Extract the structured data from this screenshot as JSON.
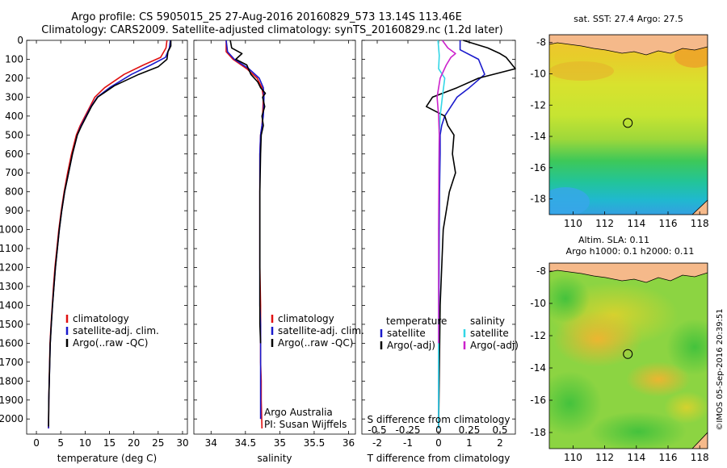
{
  "title_line1": "Argo profile: CS 5905015_25 27-Aug-2016 20160829_573 13.14S 113.46E",
  "title_line2": "Climatology: CARS2009. Satellite-adjusted climatology: synTS_20160829.nc (1.2d later)",
  "credit": "©IMOS 05-Sep-2016 20:39:51",
  "colors": {
    "climatology": "#e01010",
    "satellite": "#1a1acc",
    "argo": "#000000",
    "sal_satellite": "#33d6e6",
    "sal_argo": "#cc22cc",
    "land": "#f5b98a"
  },
  "chart_data": [
    {
      "type": "line",
      "xlabel": "temperature (deg C)",
      "ylabel": "",
      "xlim": [
        -2,
        31
      ],
      "ylim": [
        2080,
        0
      ],
      "xticks": [
        "0",
        "5",
        "10",
        "15",
        "20",
        "25",
        "30"
      ],
      "yticks": [
        "0",
        "100",
        "200",
        "300",
        "400",
        "500",
        "600",
        "700",
        "800",
        "900",
        "1000",
        "1100",
        "1200",
        "1300",
        "1400",
        "1500",
        "1600",
        "1700",
        "1800",
        "1900",
        "2000"
      ],
      "legend": [
        "climatology",
        "satellite-adj. clim.",
        "Argo(..raw -QC)"
      ],
      "series": [
        {
          "name": "climatology",
          "x": [
            26.8,
            26.6,
            25.5,
            22,
            18,
            14,
            12,
            11,
            10,
            9,
            8.2,
            7.2,
            6.4,
            5.7,
            5.1,
            4.6,
            4.2,
            3.8,
            3.5,
            3.25,
            3,
            2.8,
            2.62,
            2.55,
            2.5
          ],
          "y": [
            0,
            40,
            90,
            130,
            180,
            250,
            300,
            350,
            400,
            450,
            500,
            600,
            700,
            800,
            900,
            1000,
            1100,
            1200,
            1300,
            1400,
            1500,
            1600,
            1800,
            1900,
            2050
          ]
        },
        {
          "name": "satellite-adj. clim.",
          "x": [
            27.5,
            27.3,
            26.5,
            23.5,
            19.5,
            15,
            12.5,
            11.2,
            10.2,
            9.2,
            8.4,
            7.4,
            6.6,
            5.8,
            5.2,
            4.7,
            4.3,
            3.9,
            3.6,
            3.3,
            3.05,
            2.85,
            2.65,
            2.55,
            2.5
          ],
          "y": [
            0,
            40,
            90,
            130,
            180,
            250,
            300,
            350,
            400,
            450,
            500,
            600,
            700,
            800,
            900,
            1000,
            1100,
            1200,
            1300,
            1400,
            1500,
            1600,
            1800,
            1900,
            2050
          ]
        },
        {
          "name": "Argo(..raw -QC)",
          "x": [
            27.6,
            27.6,
            27,
            26.8,
            25,
            21,
            16,
            12.6,
            11.3,
            10.3,
            9.3,
            8.4,
            7.4,
            6.6,
            5.8,
            5.2,
            4.7,
            4.3,
            3.9,
            3.6,
            3.3,
            3.05,
            2.85,
            2.65,
            2.55,
            2.5
          ],
          "y": [
            0,
            30,
            60,
            100,
            140,
            180,
            240,
            300,
            350,
            400,
            450,
            500,
            600,
            700,
            800,
            900,
            1000,
            1100,
            1200,
            1300,
            1400,
            1500,
            1600,
            1800,
            1900,
            2040
          ]
        }
      ]
    },
    {
      "type": "line",
      "xlabel": "salinity",
      "ylabel": "",
      "xlim": [
        33.75,
        36.1
      ],
      "ylim": [
        2080,
        0
      ],
      "xticks": [
        "34",
        "34.5",
        "35",
        "35.5",
        "36"
      ],
      "legend": [
        "climatology",
        "satellite-adj. clim.",
        "Argo(..raw -QC)"
      ],
      "annotations": [
        "Argo Australia",
        "PI: Susan Wijffels"
      ],
      "series": [
        {
          "name": "climatology",
          "x": [
            34.22,
            34.22,
            34.32,
            34.52,
            34.67,
            34.74,
            34.76,
            34.75,
            34.74,
            34.72,
            34.71,
            34.71,
            34.71,
            34.71,
            34.72,
            34.72,
            34.72,
            34.72,
            34.73,
            34.73,
            34.74
          ],
          "y": [
            0,
            60,
            100,
            150,
            200,
            250,
            300,
            400,
            450,
            500,
            600,
            800,
            1000,
            1200,
            1400,
            1500,
            1600,
            1700,
            1800,
            1900,
            2050
          ]
        },
        {
          "name": "satellite-adj. clim.",
          "x": [
            34.22,
            34.24,
            34.34,
            34.55,
            34.7,
            34.76,
            34.77,
            34.76,
            34.74,
            34.72,
            34.71,
            34.71,
            34.71,
            34.71,
            34.71,
            34.72,
            34.72,
            34.72,
            34.72,
            34.72,
            34.72
          ],
          "y": [
            0,
            60,
            100,
            150,
            200,
            250,
            300,
            400,
            450,
            500,
            600,
            800,
            1000,
            1200,
            1400,
            1500,
            1600,
            1700,
            1800,
            1900,
            2000
          ]
        },
        {
          "name": "Argo(..raw -QC)",
          "x": [
            34.28,
            34.3,
            34.45,
            34.36,
            34.52,
            34.58,
            34.68,
            34.72,
            34.79,
            34.75,
            34.78,
            34.74,
            34.76,
            34.73,
            34.72,
            34.71,
            34.71,
            34.71,
            34.71,
            34.71,
            34.72
          ],
          "y": [
            0,
            40,
            70,
            100,
            130,
            180,
            220,
            250,
            280,
            300,
            350,
            400,
            450,
            500,
            600,
            800,
            1000,
            1200,
            1400,
            1500,
            1600
          ]
        }
      ]
    },
    {
      "type": "line",
      "xlabel": "T difference from climatology",
      "xlabel_top": "S difference from climatology",
      "ylabel": "",
      "xlim": [
        -2.5,
        2.5
      ],
      "ylim": [
        2080,
        0
      ],
      "xticks": [
        "-2",
        "-1",
        "0",
        "1",
        "2"
      ],
      "xticks_top": [
        "-0.5",
        "-0.25",
        "0",
        "0.25",
        "0.5"
      ],
      "legend_left_title": "temperature",
      "legend_right_title": "salinity",
      "legend_left": [
        "satellite",
        "Argo(-adj)"
      ],
      "legend_right": [
        "satellite",
        "Argo(-adj)"
      ],
      "series": [
        {
          "name": "T satellite",
          "x": [
            0.7,
            0.7,
            1.3,
            1.5,
            1.0,
            0.6,
            0.4,
            0.2,
            0.1,
            0.05,
            0.05,
            0.03,
            0.02,
            0.01,
            0,
            0
          ],
          "y": [
            0,
            50,
            100,
            180,
            250,
            300,
            350,
            400,
            450,
            500,
            600,
            800,
            1000,
            1400,
            1800,
            2050
          ]
        },
        {
          "name": "T Argo(-adj)",
          "x": [
            0.8,
            1.6,
            2.0,
            2.2,
            2.3,
            2.5,
            1.3,
            0.6,
            -0.2,
            -0.4,
            0.2,
            0.3,
            0.5,
            0.45,
            0.55,
            0.35,
            0.25,
            0.15,
            0.05,
            0
          ],
          "y": [
            0,
            40,
            70,
            90,
            110,
            150,
            200,
            250,
            300,
            350,
            400,
            450,
            500,
            600,
            700,
            800,
            900,
            1000,
            1400,
            2040
          ]
        },
        {
          "name": "S satellite",
          "x": [
            -0.02,
            0.02,
            0,
            0.2,
            0.12,
            0.05,
            0.02,
            0.01,
            0,
            0,
            0
          ],
          "y": [
            0,
            80,
            150,
            200,
            300,
            400,
            500,
            700,
            1000,
            1500,
            2050
          ]
        },
        {
          "name": "S Argo(-adj)",
          "x": [
            0.12,
            0.3,
            0.55,
            0.4,
            0.25,
            0.05,
            -0.05,
            0,
            0.02,
            0.01,
            0,
            0
          ],
          "y": [
            0,
            40,
            70,
            90,
            130,
            200,
            300,
            400,
            500,
            700,
            1000,
            1600
          ]
        }
      ]
    },
    {
      "type": "heatmap",
      "title": "sat. SST: 27.4 Argo: 27.5",
      "xlim": [
        108.5,
        118.5
      ],
      "ylim": [
        -19,
        -7.5
      ],
      "xticks": [
        "110",
        "112",
        "114",
        "116",
        "118"
      ],
      "yticks": [
        "-8",
        "-10",
        "-12",
        "-14",
        "-16",
        "-18"
      ],
      "marker": {
        "lon": 113.46,
        "lat": -13.14
      }
    },
    {
      "type": "heatmap",
      "title_line1": "Altim. SLA: 0.11",
      "title_line2": "Argo h1000: 0.1 h2000: 0.11",
      "xlim": [
        108.5,
        118.5
      ],
      "ylim": [
        -19,
        -7.5
      ],
      "xticks": [
        "110",
        "112",
        "114",
        "116",
        "118"
      ],
      "yticks": [
        "-8",
        "-10",
        "-12",
        "-14",
        "-16",
        "-18"
      ],
      "marker": {
        "lon": 113.46,
        "lat": -13.14
      }
    }
  ]
}
